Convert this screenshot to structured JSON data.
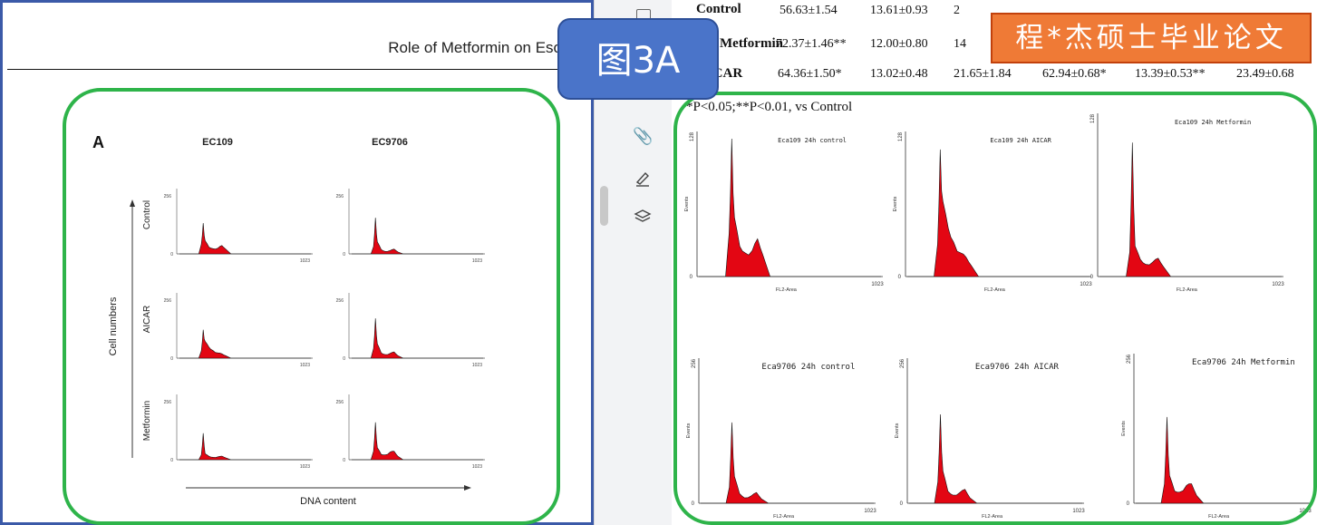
{
  "left": {
    "header_title": "Role of Metformin on Eso",
    "panel_letter": "A",
    "col_labels": [
      "EC109",
      "EC9706"
    ],
    "row_labels": [
      "Control",
      "AICAR",
      "Metformin"
    ],
    "y_axis_label": "Cell numbers",
    "x_axis_label": "DNA content",
    "ymax": "256",
    "ymin": "0",
    "xmax": "1023"
  },
  "table": {
    "rows": [
      {
        "name": "Control",
        "cells": [
          "56.63±1.54",
          "13.61±0.93",
          "2"
        ]
      },
      {
        "name": "Metformin",
        "cells": [
          "72.37±1.46**",
          "12.00±0.80",
          "14"
        ]
      },
      {
        "name": "AICAR",
        "cells": [
          "64.36±1.50*",
          "13.02±0.48",
          "21.65±1.84",
          "62.94±0.68*",
          "13.39±0.53**",
          "23.49±0.68"
        ]
      }
    ],
    "footnote": "*P<0.05;**P<0.01, vs Control"
  },
  "right": {
    "panels": [
      {
        "title": "Eca109 24h control",
        "ymax": "128",
        "xmax": "1023",
        "xlabel": "FL2-Area",
        "ylabel": "Events",
        "ymin": "0"
      },
      {
        "title": "Eca109 24h AICAR",
        "ymax": "128",
        "xmax": "1023",
        "xlabel": "FL2-Area",
        "ylabel": "Events",
        "ymin": "0"
      },
      {
        "title": "Eca109 24h Metformin",
        "ymax": "128",
        "xmax": "1023",
        "xlabel": "FL2-Area",
        "ylabel": "",
        "ymin": "0"
      },
      {
        "title": "Eca9706 24h control",
        "ymax": "256",
        "xmax": "1023",
        "xlabel": "FL2-Area",
        "ylabel": "Events",
        "ymin": "0"
      },
      {
        "title": "Eca9706 24h AICAR",
        "ymax": "256",
        "xmax": "1023",
        "xlabel": "FL2-Area",
        "ylabel": "Events",
        "ymin": "0"
      },
      {
        "title": "Eca9706 24h Metformin",
        "ymax": "256",
        "xmax": "1023",
        "xlabel": "FL2-Area",
        "ylabel": "Events",
        "ymin": "0"
      }
    ]
  },
  "overlays": {
    "figure_label": "图3A",
    "thesis_label": "程*杰硕士毕业论文"
  },
  "gutter_icons": [
    "attachment-icon",
    "signature-icon",
    "layers-icon"
  ],
  "colors": {
    "histogram_fill": "#e30613",
    "highlight_green": "#2eb44a",
    "label_blue": "#4a74c9",
    "label_orange": "#ef7a36"
  },
  "chart_data": {
    "type": "area",
    "title": "",
    "xlabel": "FL2-Area",
    "ylabel": "Events",
    "xlim": [
      0,
      1023
    ],
    "description_note": "",
    "series": [
      {
        "name": "Eca109 24h control",
        "x": [
          0,
          150,
          170,
          185,
          200,
          230,
          260,
          300,
          330,
          360,
          400,
          1023
        ],
        "y": [
          0,
          0,
          40,
          128,
          55,
          28,
          22,
          24,
          35,
          20,
          0,
          0
        ]
      },
      {
        "name": "Eca109 24h AICAR",
        "x": [
          0,
          150,
          170,
          185,
          200,
          230,
          260,
          300,
          330,
          360,
          400,
          1023
        ],
        "y": [
          0,
          0,
          30,
          118,
          70,
          45,
          32,
          22,
          18,
          10,
          0,
          0
        ]
      },
      {
        "name": "Eca109 24h Metformin",
        "x": [
          0,
          150,
          170,
          185,
          200,
          230,
          260,
          300,
          330,
          360,
          400,
          1023
        ],
        "y": [
          0,
          0,
          20,
          110,
          25,
          14,
          10,
          12,
          15,
          8,
          0,
          0
        ]
      },
      {
        "name": "Eca9706 24h control",
        "x": [
          0,
          150,
          170,
          185,
          200,
          230,
          260,
          300,
          330,
          360,
          400,
          1023
        ],
        "y": [
          0,
          0,
          30,
          150,
          50,
          18,
          10,
          14,
          20,
          8,
          0,
          0
        ]
      },
      {
        "name": "Eca9706 24h AICAR",
        "x": [
          0,
          150,
          170,
          185,
          200,
          230,
          260,
          300,
          330,
          360,
          400,
          1023
        ],
        "y": [
          0,
          0,
          40,
          165,
          60,
          22,
          15,
          20,
          26,
          10,
          0,
          0
        ]
      },
      {
        "name": "Eca9706 24h Metformin",
        "x": [
          0,
          150,
          170,
          185,
          200,
          230,
          260,
          300,
          330,
          360,
          400,
          1023
        ],
        "y": [
          0,
          0,
          35,
          155,
          50,
          22,
          20,
          32,
          35,
          14,
          0,
          0
        ]
      }
    ]
  }
}
